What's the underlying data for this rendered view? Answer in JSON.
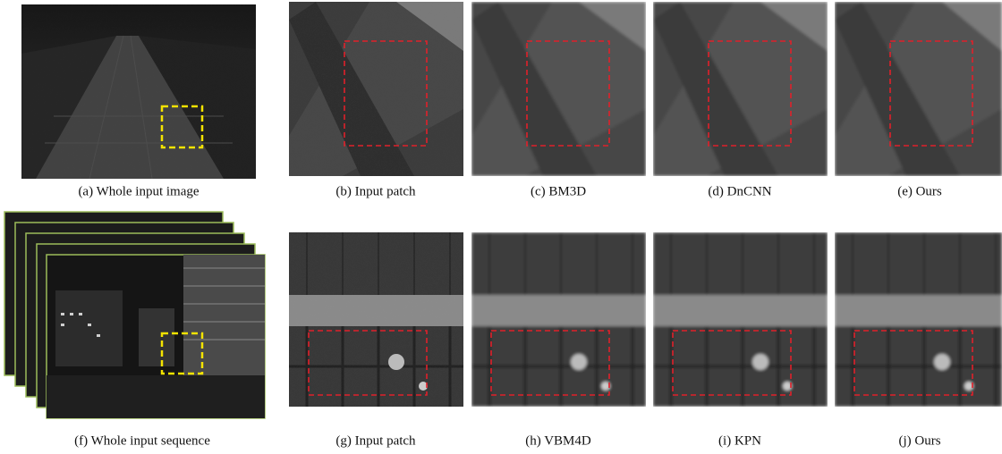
{
  "panels": [
    {
      "caption": "(a) Whole input image"
    },
    {
      "caption": "(b) Input patch"
    },
    {
      "caption": "(c) BM3D"
    },
    {
      "caption": "(d) DnCNN"
    },
    {
      "caption": "(e) Ours"
    },
    {
      "caption": "(f) Whole input sequence"
    },
    {
      "caption": "(g) Input patch"
    },
    {
      "caption": "(h) VBM4D"
    },
    {
      "caption": "(i) KPN"
    },
    {
      "caption": "(j) Ours"
    }
  ]
}
